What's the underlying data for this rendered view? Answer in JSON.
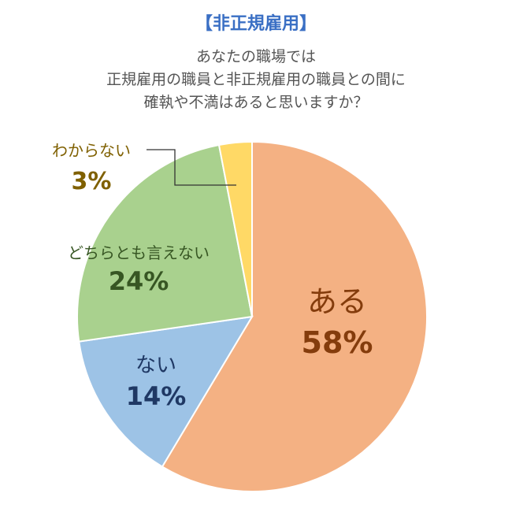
{
  "header": {
    "tag": "【非正規雇用】",
    "question_lines": [
      "あなたの職場では",
      "正規雇用の職員と非正規雇用の職員との間に",
      "確執や不満はあると思いますか？"
    ]
  },
  "chart_data": {
    "type": "pie",
    "slices": [
      {
        "label": "ある",
        "value": 58,
        "value_label": "58%",
        "color": "#f4b183",
        "text_color": "#843c0c"
      },
      {
        "label": "ない",
        "value": 14,
        "value_label": "14%",
        "color": "#9dc3e6",
        "text_color": "#1f3864"
      },
      {
        "label": "どちらとも言えない",
        "value": 24,
        "value_label": "24%",
        "color": "#a9d18e",
        "text_color": "#375623"
      },
      {
        "label": "わからない",
        "value": 3,
        "value_label": "3%",
        "color": "#ffd966",
        "text_color": "#7f6000"
      }
    ]
  }
}
